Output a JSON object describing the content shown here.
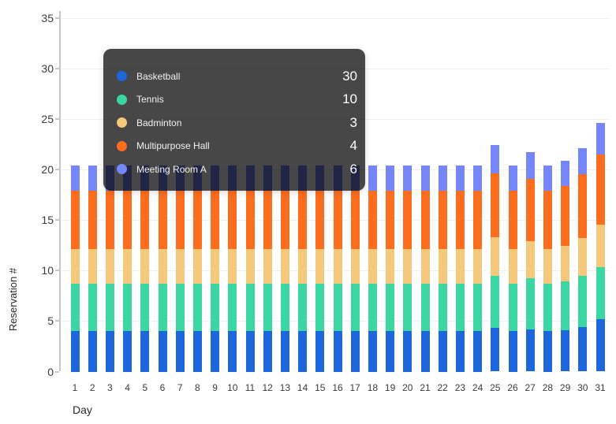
{
  "chart_data": {
    "type": "bar",
    "stacked": true,
    "title": "",
    "xlabel": "Day",
    "ylabel": "Reservation #",
    "categories": [
      1,
      2,
      3,
      4,
      5,
      6,
      7,
      8,
      9,
      10,
      11,
      12,
      13,
      14,
      15,
      16,
      17,
      18,
      19,
      20,
      21,
      22,
      23,
      24,
      25,
      26,
      27,
      28,
      29,
      30,
      31
    ],
    "ylim": [
      0,
      35
    ],
    "yticks": [
      0,
      5,
      10,
      15,
      20,
      25,
      30,
      35
    ],
    "grid": true,
    "legend_position": "none",
    "series": [
      {
        "name": "Basketball",
        "color": "#1E66DB",
        "values": [
          4,
          4,
          4,
          4,
          4,
          4,
          4,
          4,
          4,
          4,
          4,
          4,
          4,
          4,
          4,
          4,
          4,
          4,
          4,
          4,
          4,
          4,
          4,
          4,
          4.3,
          4,
          4.2,
          4,
          4.1,
          4.4,
          5.2
        ]
      },
      {
        "name": "Tennis",
        "color": "#3BD6A2",
        "values": [
          4.7,
          4.7,
          4.7,
          4.7,
          4.7,
          4.7,
          4.7,
          4.7,
          4.7,
          4.7,
          4.7,
          4.7,
          4.7,
          4.7,
          4.7,
          4.7,
          4.7,
          4.7,
          4.7,
          4.7,
          4.7,
          4.7,
          4.7,
          4.7,
          5.2,
          4.7,
          5.0,
          4.7,
          4.8,
          5.1,
          5.1
        ]
      },
      {
        "name": "Badminton",
        "color": "#F4C97B",
        "values": [
          3.4,
          3.4,
          3.4,
          3.4,
          3.4,
          3.4,
          3.4,
          3.4,
          3.4,
          3.4,
          3.4,
          3.4,
          3.4,
          3.4,
          3.4,
          3.4,
          3.4,
          3.4,
          3.4,
          3.4,
          3.4,
          3.4,
          3.4,
          3.4,
          3.8,
          3.4,
          3.7,
          3.4,
          3.5,
          3.7,
          4.2
        ]
      },
      {
        "name": "Multipurpose Hall",
        "color": "#FC6D1E",
        "values": [
          5.8,
          5.8,
          5.8,
          5.8,
          5.8,
          5.8,
          5.8,
          5.8,
          5.8,
          5.8,
          5.8,
          5.8,
          5.8,
          5.8,
          5.8,
          5.8,
          5.8,
          5.8,
          5.8,
          5.8,
          5.8,
          5.8,
          5.8,
          5.8,
          6.3,
          5.8,
          6.2,
          5.8,
          6.0,
          6.3,
          7.0
        ]
      },
      {
        "name": "Meeting Room A",
        "color": "#7486F8",
        "values": [
          2.5,
          2.5,
          2.5,
          2.5,
          2.5,
          2.5,
          2.5,
          2.5,
          2.5,
          2.5,
          2.5,
          2.5,
          2.5,
          2.5,
          2.5,
          2.5,
          2.5,
          2.5,
          2.5,
          2.5,
          2.5,
          2.5,
          2.5,
          2.5,
          2.8,
          2.5,
          2.6,
          2.5,
          2.5,
          2.6,
          3.1
        ]
      }
    ]
  },
  "tooltip": {
    "background": "rgba(0,0,0,0.72)",
    "rows": [
      {
        "label": "Basketball",
        "value": "30",
        "color": "#1E66DB"
      },
      {
        "label": "Tennis",
        "value": "10",
        "color": "#3BD6A2"
      },
      {
        "label": "Badminton",
        "value": "3",
        "color": "#F4C97B"
      },
      {
        "label": "Multipurpose Hall",
        "value": "4",
        "color": "#FC6D1E"
      },
      {
        "label": "Meeting Room A",
        "value": "6",
        "color": "#7486F8"
      }
    ]
  }
}
